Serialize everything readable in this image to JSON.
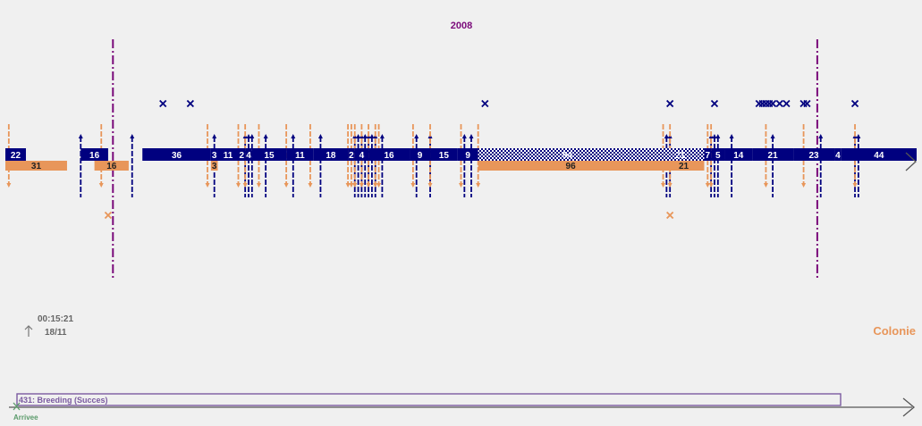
{
  "year_label": "2008",
  "colors": {
    "navy": "#00007f",
    "orange": "#e8965a",
    "purple": "#7a0a7a",
    "grey": "#666666",
    "green": "#5a9a6a",
    "breeding_stroke": "#7a5aa0",
    "hatch": "#00007f"
  },
  "timestamp": {
    "time": "00:15:21",
    "date": "18/11",
    "icon": "up-arrow-icon"
  },
  "colony_label": "Colonie",
  "breeding_bar_label": "431: Breeding (Succes)",
  "arrival_label": "Arrivee",
  "chart_data": {
    "type": "timeline",
    "title": "2008",
    "year_markers": [
      1,
      2
    ],
    "navy_segments": [
      {
        "label": "22",
        "start": 0,
        "end": 3
      },
      {
        "label": "16",
        "start": 11,
        "end": 15
      },
      {
        "label": "36",
        "start": 20,
        "end": 30
      },
      {
        "label": "3",
        "start": 30,
        "end": 31
      },
      {
        "label": "11",
        "start": 31,
        "end": 34
      },
      {
        "label": "2",
        "start": 34,
        "end": 35
      },
      {
        "label": "4",
        "start": 35,
        "end": 36
      },
      {
        "label": "15",
        "start": 36,
        "end": 41
      },
      {
        "label": "11",
        "start": 41,
        "end": 45
      },
      {
        "label": "18",
        "start": 45,
        "end": 50
      },
      {
        "label": "2",
        "start": 50,
        "end": 51
      },
      {
        "label": "4",
        "start": 51,
        "end": 53
      },
      {
        "label": "16",
        "start": 53,
        "end": 59
      },
      {
        "label": "9",
        "start": 59,
        "end": 62
      },
      {
        "label": "15",
        "start": 62,
        "end": 66
      },
      {
        "label": "9",
        "start": 66,
        "end": 69
      },
      {
        "label": "94",
        "start": 69,
        "end": 95,
        "hatched": true
      },
      {
        "label": "21",
        "start": 95,
        "end": 102,
        "hatched": true
      },
      {
        "label": "7",
        "start": 102,
        "end": 103
      },
      {
        "label": "5",
        "start": 103,
        "end": 105
      },
      {
        "label": "14",
        "start": 105,
        "end": 109
      },
      {
        "label": "21",
        "start": 109,
        "end": 115
      },
      {
        "label": "23",
        "start": 115,
        "end": 121
      },
      {
        "label": "4",
        "start": 121,
        "end": 122
      },
      {
        "label": "44",
        "start": 122,
        "end": 133
      }
    ],
    "orange_segments": [
      {
        "label": "31",
        "start": 0,
        "end": 9
      },
      {
        "label": "16",
        "start": 13,
        "end": 18
      },
      {
        "label": "3",
        "start": 30,
        "end": 31
      },
      {
        "label": "96",
        "start": 69,
        "end": 96
      },
      {
        "label": "21",
        "start": 96,
        "end": 102
      }
    ],
    "navy_markers": [
      11,
      18.5,
      30.5,
      35,
      35.5,
      36,
      38,
      42,
      46,
      51,
      51.5,
      52,
      52.5,
      53,
      53.5,
      54,
      55,
      60,
      62,
      67,
      68,
      96.5,
      97,
      103,
      103.5,
      104,
      106,
      112,
      119,
      124,
      124.5
    ],
    "orange_markers": [
      0.5,
      14,
      29.5,
      34,
      35,
      37,
      41,
      44.5,
      50,
      50.5,
      51,
      52,
      53,
      54,
      54.5,
      59.5,
      62,
      66.5,
      69,
      96,
      97,
      102.5,
      103,
      111,
      116.5,
      124
    ],
    "navy_x_marks": [
      23,
      27,
      70,
      97,
      103.5,
      110,
      110.5,
      111,
      111.5,
      112,
      113,
      114,
      116.5,
      117,
      124
    ],
    "orange_x_marks": [
      15,
      97
    ]
  }
}
